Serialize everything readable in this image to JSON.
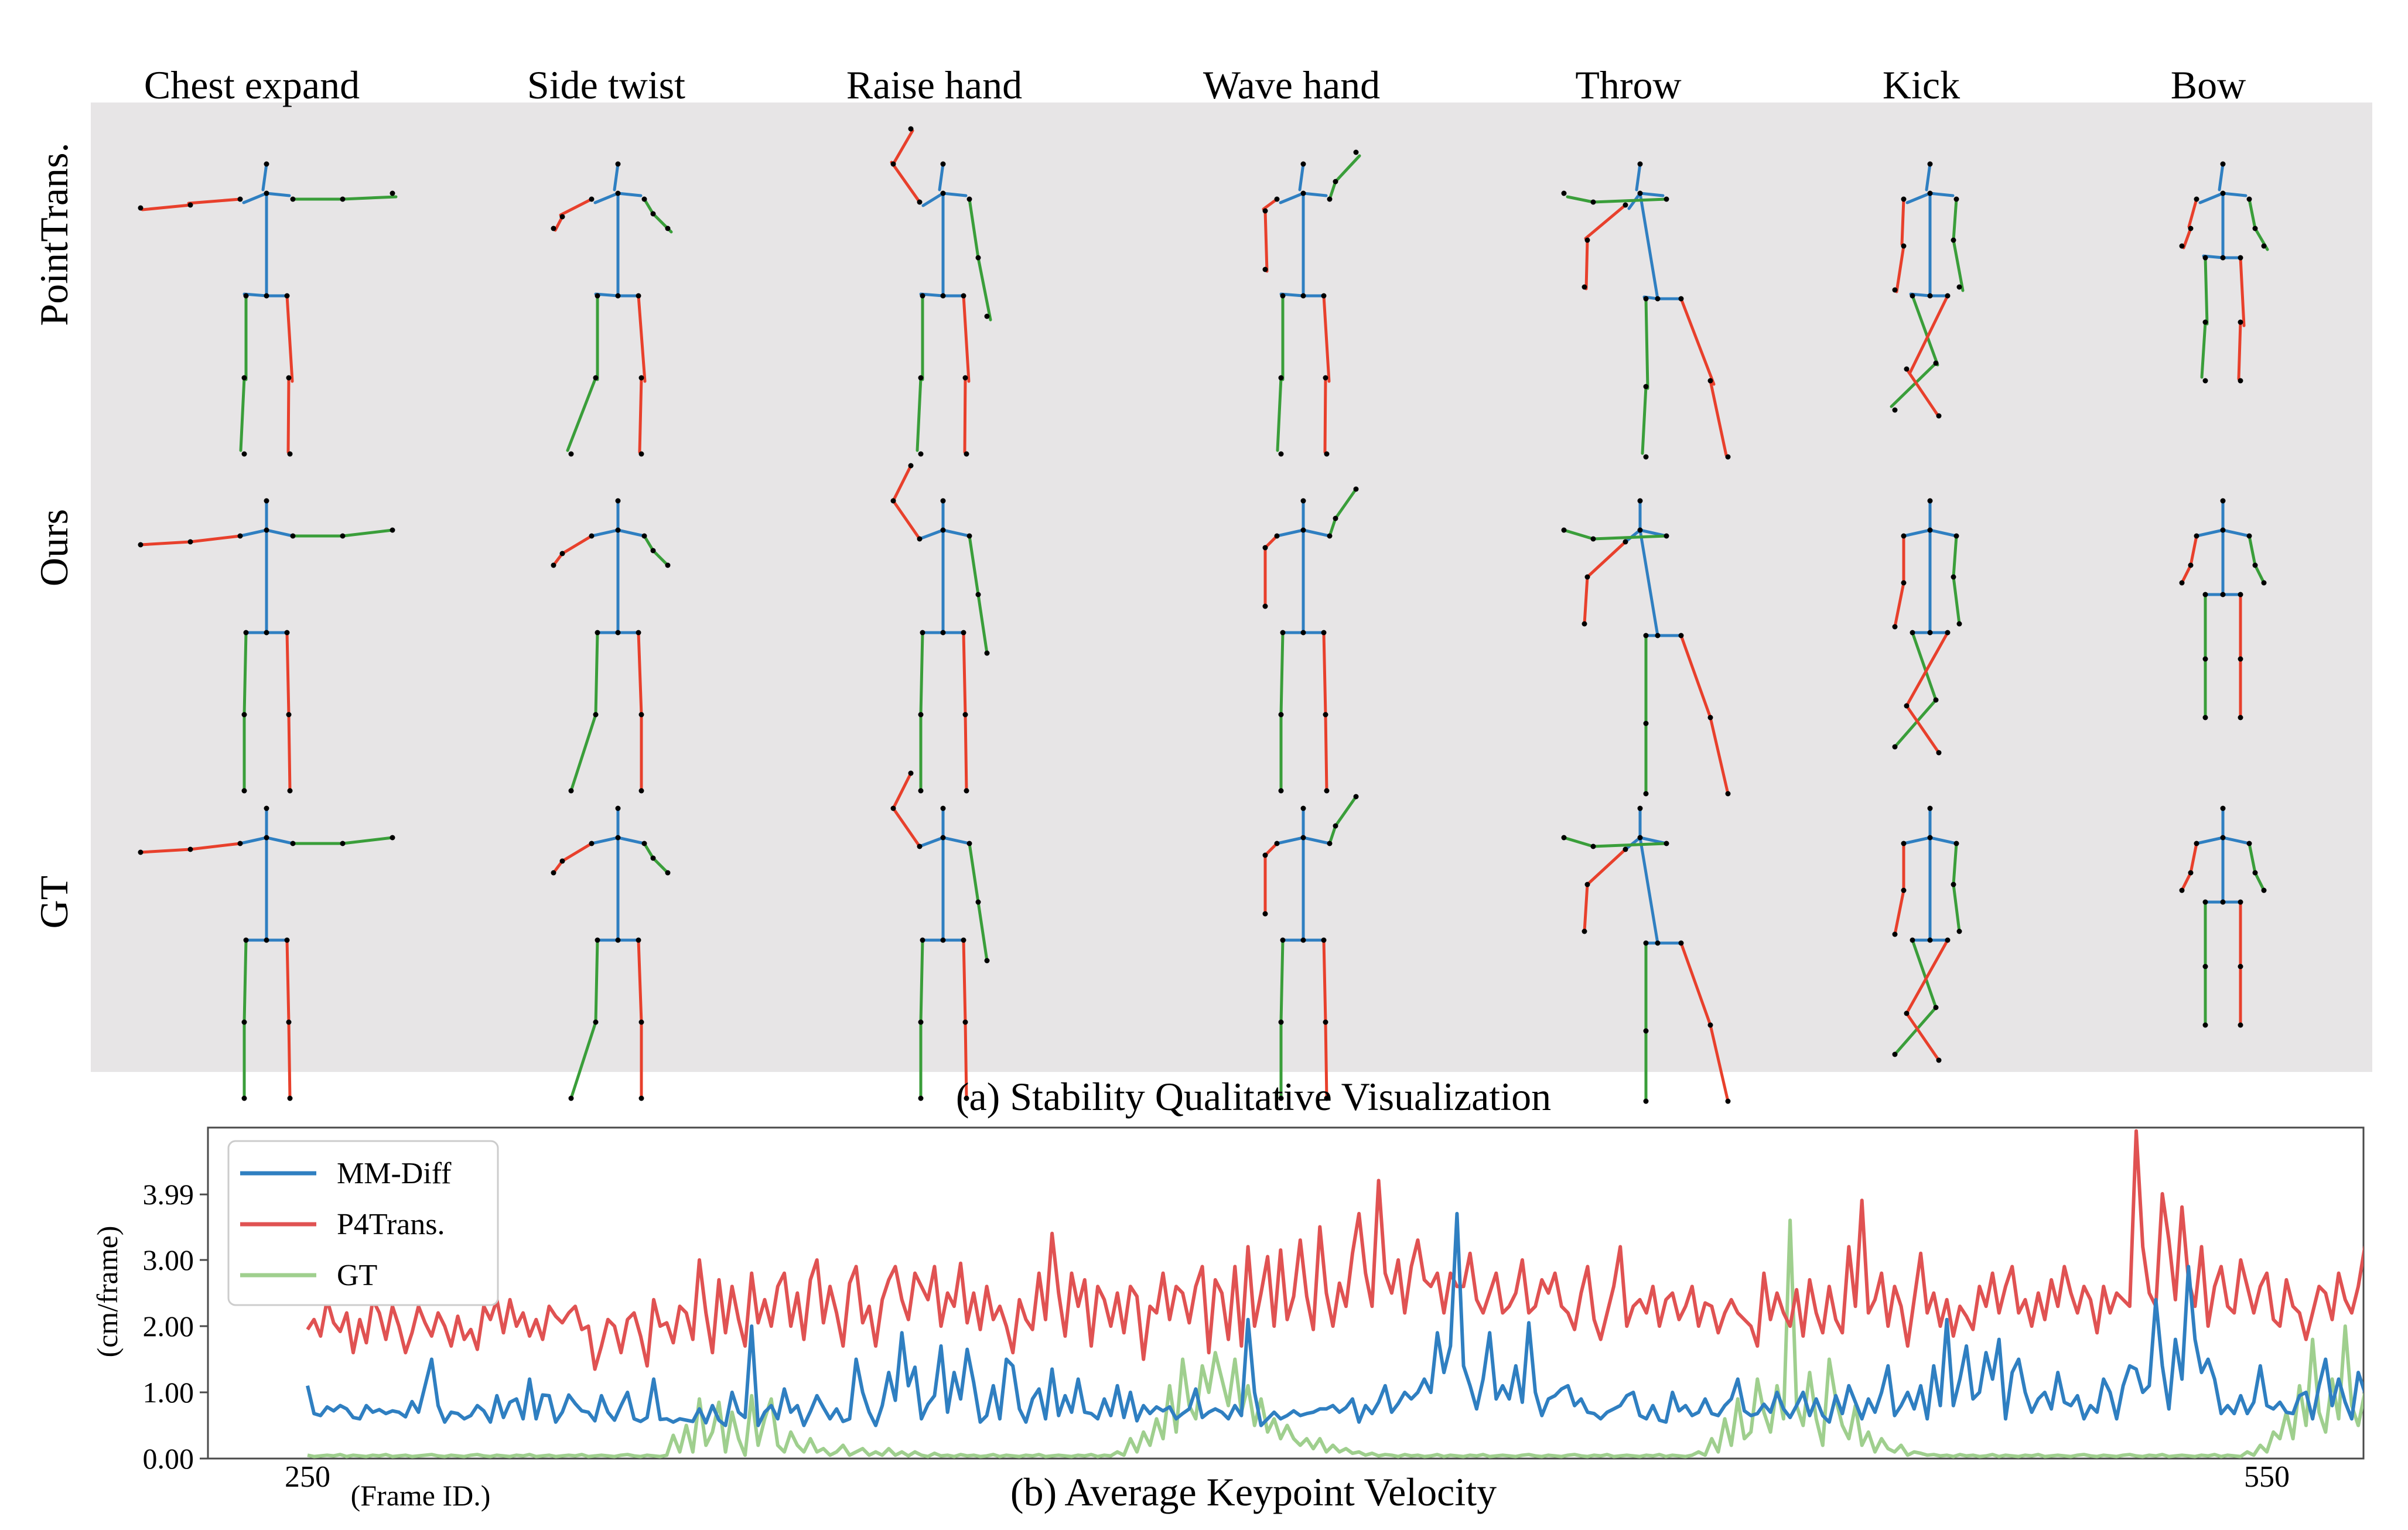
{
  "figure": {
    "actions": [
      "Chest expand",
      "Side twist",
      "Raise hand",
      "Wave hand",
      "Throw",
      "Kick",
      "Bow"
    ],
    "rows": [
      "PointTrans.",
      "Ours",
      "GT"
    ],
    "caption_a": "(a) Stability Qualitative Visualization",
    "caption_b": "(b) Average Keypoint Velocity",
    "colors": {
      "panel_bg": "#e7e5e6",
      "spine": "#2f7fc1",
      "left_limb": "#e8402c",
      "right_limb": "#3a9e3a",
      "joint": "#000000"
    }
  },
  "chart_data": {
    "type": "line",
    "title": "(b) Average Keypoint Velocity",
    "xlabel": "(Frame ID.)",
    "ylabel": "(cm/frame)",
    "xlim": [
      250,
      550
    ],
    "ylim": [
      0,
      5
    ],
    "x_ticks": [
      "250",
      "550"
    ],
    "y_ticks": [
      "0.00",
      "1.00",
      "2.00",
      "3.00",
      "3.99"
    ],
    "legend": "top-left",
    "grid": false,
    "x_start": 250,
    "x_step": 1,
    "series": [
      {
        "name": "MM-Diff",
        "color": "#2f7fc1",
        "values": [
          1.1,
          0.68,
          0.65,
          0.78,
          0.72,
          0.8,
          0.75,
          0.62,
          0.6,
          0.8,
          0.7,
          0.74,
          0.68,
          0.72,
          0.7,
          0.63,
          0.86,
          0.7,
          1.1,
          1.5,
          0.8,
          0.55,
          0.7,
          0.68,
          0.6,
          0.65,
          0.8,
          0.72,
          0.55,
          0.95,
          0.62,
          0.85,
          0.9,
          0.6,
          1.2,
          0.6,
          0.96,
          0.95,
          0.55,
          0.7,
          0.96,
          0.83,
          0.72,
          0.7,
          0.57,
          0.95,
          0.7,
          0.58,
          0.8,
          1.0,
          0.6,
          0.56,
          0.62,
          1.2,
          0.59,
          0.6,
          0.55,
          0.6,
          0.58,
          0.56,
          0.75,
          0.54,
          0.8,
          0.58,
          0.5,
          1.0,
          0.7,
          0.62,
          2.0,
          0.5,
          0.7,
          0.8,
          0.6,
          1.05,
          0.7,
          0.8,
          0.5,
          0.71,
          0.95,
          0.77,
          0.6,
          0.75,
          0.56,
          0.6,
          1.5,
          1.0,
          0.7,
          0.5,
          0.8,
          1.3,
          0.88,
          1.9,
          1.1,
          1.38,
          0.6,
          0.82,
          0.95,
          1.7,
          0.7,
          1.3,
          0.9,
          1.65,
          1.15,
          0.55,
          0.65,
          1.1,
          0.6,
          1.5,
          1.4,
          0.75,
          0.55,
          0.9,
          1.05,
          0.6,
          1.35,
          0.65,
          0.95,
          0.7,
          1.2,
          0.7,
          0.68,
          0.6,
          0.9,
          0.65,
          1.1,
          0.62,
          1.0,
          0.57,
          0.8,
          0.68,
          0.78,
          0.72,
          0.78,
          0.6,
          0.68,
          0.75,
          1.05,
          0.62,
          0.7,
          0.75,
          0.7,
          0.6,
          0.8,
          0.65,
          2.1,
          1.0,
          0.5,
          0.6,
          0.7,
          0.6,
          0.65,
          0.72,
          0.65,
          0.68,
          0.7,
          0.75,
          0.75,
          0.8,
          0.7,
          0.77,
          0.9,
          0.55,
          0.8,
          0.68,
          0.85,
          1.1,
          0.7,
          0.83,
          1.0,
          0.9,
          1.0,
          1.2,
          1.0,
          1.9,
          1.3,
          1.7,
          3.7,
          1.4,
          1.1,
          0.75,
          1.2,
          1.9,
          0.9,
          1.1,
          0.9,
          1.4,
          0.85,
          2.05,
          1.0,
          0.65,
          0.9,
          0.95,
          1.05,
          1.1,
          0.8,
          0.9,
          0.7,
          0.68,
          0.6,
          0.7,
          0.75,
          0.8,
          0.95,
          1.0,
          0.65,
          0.6,
          0.8,
          0.58,
          0.55,
          1.0,
          0.72,
          0.8,
          0.65,
          0.7,
          0.9,
          0.68,
          0.65,
          0.8,
          0.9,
          1.2,
          0.72,
          0.65,
          0.68,
          0.82,
          0.7,
          1.0,
          0.75,
          0.62,
          0.8,
          1.0,
          0.65,
          0.9,
          0.65,
          0.55,
          0.95,
          0.68,
          1.1,
          0.85,
          0.6,
          0.9,
          0.7,
          1.0,
          1.4,
          0.65,
          0.8,
          1.0,
          0.75,
          1.1,
          0.6,
          1.4,
          0.8,
          2.1,
          0.8,
          1.2,
          1.7,
          0.9,
          1.0,
          1.6,
          1.2,
          1.8,
          0.6,
          1.3,
          1.5,
          1.0,
          0.7,
          0.9,
          1.0,
          0.75,
          1.3,
          0.85,
          0.8,
          0.95,
          0.6,
          0.8,
          0.7,
          1.2,
          1.0,
          0.6,
          1.1,
          1.4,
          1.35,
          1.0,
          1.1,
          2.4,
          1.4,
          0.75,
          1.8,
          1.2,
          2.9,
          1.8,
          1.3,
          1.5,
          1.2,
          0.68,
          0.8,
          0.68,
          0.95,
          0.68,
          0.85,
          1.4,
          0.8,
          0.75,
          0.85,
          0.7,
          0.68,
          0.95,
          1.0,
          0.6,
          1.1,
          1.5,
          0.8,
          1.2,
          0.85,
          0.6,
          1.3,
          1.0,
          0.85,
          0.65,
          1.5,
          1.95,
          1.0,
          0.68,
          0.75,
          0.8,
          1.0,
          1.2,
          0.9,
          1.4,
          1.8,
          1.9,
          1.2,
          1.3,
          2.4,
          1.3,
          1.75,
          1.3,
          1.2,
          0.9,
          0.7,
          1.4,
          1.05,
          0.95,
          1.3,
          0.8,
          1.25,
          1.1,
          0.9,
          1.5,
          1.0,
          0.7,
          2.05,
          0.8,
          1.4,
          1.45,
          1.42
        ]
      },
      {
        "name": "P4Trans.",
        "color": "#e05252",
        "values": [
          1.95,
          2.1,
          1.85,
          2.4,
          2.05,
          1.92,
          2.2,
          1.6,
          2.1,
          1.75,
          2.4,
          2.2,
          1.8,
          2.3,
          2.0,
          1.6,
          1.9,
          2.3,
          2.05,
          1.85,
          2.2,
          2.0,
          1.7,
          2.15,
          1.8,
          1.95,
          1.65,
          2.3,
          2.1,
          2.4,
          1.9,
          2.4,
          2.0,
          2.2,
          1.85,
          2.1,
          1.8,
          2.3,
          2.15,
          2.05,
          2.2,
          2.3,
          1.95,
          2.0,
          1.35,
          1.7,
          2.1,
          2.0,
          1.6,
          2.1,
          2.2,
          1.85,
          1.4,
          2.4,
          2.0,
          2.05,
          1.75,
          2.3,
          2.2,
          1.8,
          3.0,
          2.2,
          1.6,
          2.7,
          1.9,
          2.6,
          2.1,
          1.7,
          2.8,
          2.05,
          2.4,
          2.0,
          2.6,
          2.8,
          2.0,
          2.5,
          1.8,
          2.7,
          3.0,
          2.05,
          2.6,
          2.2,
          1.7,
          2.65,
          2.9,
          2.05,
          2.3,
          1.7,
          2.4,
          2.7,
          2.9,
          2.4,
          2.1,
          2.8,
          2.6,
          2.4,
          2.9,
          2.0,
          2.5,
          2.3,
          2.95,
          2.05,
          2.5,
          1.95,
          2.6,
          2.1,
          2.3,
          2.0,
          1.6,
          2.4,
          2.1,
          1.95,
          2.8,
          2.1,
          3.4,
          2.5,
          1.85,
          2.8,
          2.3,
          2.7,
          1.7,
          2.6,
          2.4,
          2.0,
          2.5,
          1.9,
          2.6,
          2.45,
          1.5,
          2.3,
          2.2,
          2.8,
          2.1,
          2.6,
          2.5,
          2.05,
          2.6,
          2.9,
          1.6,
          2.7,
          2.5,
          1.8,
          2.9,
          1.7,
          3.2,
          2.0,
          2.5,
          3.05,
          2.0,
          3.15,
          2.1,
          2.45,
          3.3,
          2.45,
          1.95,
          3.5,
          2.5,
          2.0,
          2.65,
          2.3,
          3.1,
          3.7,
          2.8,
          2.3,
          4.2,
          2.8,
          2.5,
          3.0,
          2.2,
          2.9,
          3.3,
          2.7,
          2.6,
          2.8,
          2.2,
          2.8,
          2.6,
          2.6,
          3.1,
          2.4,
          2.2,
          2.5,
          2.8,
          2.2,
          2.3,
          2.5,
          3.0,
          2.2,
          2.3,
          2.7,
          2.5,
          2.8,
          2.3,
          2.2,
          1.95,
          2.5,
          2.9,
          2.1,
          1.8,
          2.2,
          2.6,
          3.2,
          2.0,
          2.3,
          2.4,
          2.2,
          2.6,
          2.0,
          2.4,
          2.5,
          2.1,
          2.3,
          2.6,
          2.0,
          2.35,
          2.3,
          1.9,
          2.2,
          2.4,
          2.2,
          2.1,
          2.0,
          1.7,
          2.8,
          2.1,
          2.5,
          2.2,
          2.0,
          2.55,
          1.85,
          2.7,
          2.2,
          1.9,
          2.6,
          2.1,
          1.9,
          3.2,
          2.3,
          3.9,
          2.2,
          2.4,
          2.8,
          2.0,
          2.6,
          2.3,
          1.7,
          2.4,
          3.1,
          2.2,
          2.5,
          2.0,
          2.4,
          1.85,
          2.3,
          2.15,
          1.95,
          2.6,
          2.3,
          2.8,
          2.2,
          2.6,
          2.9,
          2.2,
          2.4,
          2.0,
          2.5,
          2.1,
          2.7,
          2.3,
          2.9,
          2.5,
          2.2,
          2.6,
          2.4,
          1.9,
          2.6,
          2.2,
          2.5,
          2.4,
          2.3,
          4.95,
          3.2,
          2.5,
          2.3,
          4.0,
          3.3,
          2.4,
          3.8,
          2.7,
          2.3,
          3.2,
          2.0,
          2.6,
          2.9,
          2.3,
          2.2,
          3.0,
          2.6,
          2.2,
          2.6,
          2.8,
          2.1,
          2.0,
          2.7,
          2.3,
          2.2,
          1.8,
          2.2,
          2.6,
          2.5,
          2.1,
          2.8,
          2.4,
          2.2,
          2.6,
          3.2,
          2.3,
          3.5,
          2.7,
          2.3,
          4.05,
          2.6,
          2.5,
          3.8,
          2.2,
          2.6,
          3.6,
          2.4,
          2.9,
          3.2,
          2.6,
          2.7,
          2.9,
          2.6,
          2.8,
          2.7,
          2.6,
          2.9,
          2.2,
          3.1,
          2.5,
          2.9,
          2.7,
          2.5,
          2.6,
          2.5,
          2.1,
          2.5
        ]
      },
      {
        "name": "GT",
        "color": "#9fcf8e",
        "values": [
          0.05,
          0.03,
          0.04,
          0.05,
          0.04,
          0.06,
          0.03,
          0.05,
          0.04,
          0.03,
          0.05,
          0.04,
          0.06,
          0.03,
          0.04,
          0.05,
          0.03,
          0.04,
          0.05,
          0.06,
          0.04,
          0.03,
          0.05,
          0.04,
          0.03,
          0.05,
          0.06,
          0.04,
          0.03,
          0.05,
          0.04,
          0.03,
          0.05,
          0.04,
          0.06,
          0.03,
          0.04,
          0.05,
          0.03,
          0.04,
          0.05,
          0.04,
          0.06,
          0.03,
          0.04,
          0.05,
          0.04,
          0.03,
          0.05,
          0.06,
          0.04,
          0.03,
          0.05,
          0.04,
          0.03,
          0.05,
          0.35,
          0.1,
          0.5,
          0.1,
          0.9,
          0.2,
          0.4,
          0.85,
          0.1,
          0.7,
          0.3,
          0.05,
          0.95,
          0.2,
          0.6,
          0.9,
          0.2,
          0.1,
          0.4,
          0.2,
          0.1,
          0.3,
          0.1,
          0.15,
          0.05,
          0.1,
          0.2,
          0.05,
          0.1,
          0.15,
          0.05,
          0.1,
          0.05,
          0.15,
          0.05,
          0.1,
          0.04,
          0.1,
          0.05,
          0.03,
          0.08,
          0.04,
          0.05,
          0.03,
          0.06,
          0.04,
          0.05,
          0.03,
          0.04,
          0.06,
          0.03,
          0.05,
          0.04,
          0.03,
          0.05,
          0.04,
          0.06,
          0.03,
          0.04,
          0.05,
          0.04,
          0.03,
          0.05,
          0.04,
          0.06,
          0.03,
          0.05,
          0.04,
          0.1,
          0.05,
          0.3,
          0.1,
          0.4,
          0.2,
          0.6,
          0.3,
          1.1,
          0.4,
          1.5,
          0.8,
          0.6,
          1.4,
          1.0,
          1.6,
          1.2,
          0.8,
          1.5,
          0.7,
          1.1,
          0.5,
          0.9,
          0.4,
          0.6,
          0.3,
          0.5,
          0.3,
          0.2,
          0.3,
          0.15,
          0.3,
          0.1,
          0.2,
          0.1,
          0.15,
          0.08,
          0.1,
          0.05,
          0.08,
          0.04,
          0.06,
          0.05,
          0.03,
          0.06,
          0.04,
          0.05,
          0.03,
          0.04,
          0.06,
          0.03,
          0.05,
          0.04,
          0.03,
          0.05,
          0.04,
          0.06,
          0.03,
          0.04,
          0.05,
          0.04,
          0.03,
          0.05,
          0.06,
          0.04,
          0.03,
          0.05,
          0.04,
          0.03,
          0.05,
          0.06,
          0.04,
          0.03,
          0.05,
          0.04,
          0.06,
          0.03,
          0.04,
          0.05,
          0.04,
          0.03,
          0.05,
          0.04,
          0.06,
          0.03,
          0.05,
          0.04,
          0.03,
          0.05,
          0.1,
          0.05,
          0.3,
          0.1,
          0.6,
          0.2,
          0.9,
          0.3,
          0.4,
          1.2,
          0.7,
          0.4,
          1.1,
          0.6,
          3.6,
          0.8,
          0.5,
          1.3,
          0.6,
          0.2,
          1.5,
          0.9,
          0.5,
          0.3,
          0.8,
          0.2,
          0.4,
          0.1,
          0.3,
          0.15,
          0.1,
          0.2,
          0.05,
          0.1,
          0.08,
          0.05,
          0.06,
          0.04,
          0.05,
          0.03,
          0.06,
          0.04,
          0.05,
          0.03,
          0.04,
          0.06,
          0.03,
          0.05,
          0.04,
          0.03,
          0.05,
          0.04,
          0.06,
          0.03,
          0.04,
          0.05,
          0.04,
          0.03,
          0.05,
          0.06,
          0.04,
          0.03,
          0.05,
          0.04,
          0.03,
          0.05,
          0.06,
          0.04,
          0.03,
          0.05,
          0.04,
          0.06,
          0.03,
          0.04,
          0.05,
          0.04,
          0.03,
          0.05,
          0.04,
          0.06,
          0.03,
          0.05,
          0.04,
          0.03,
          0.1,
          0.05,
          0.2,
          0.1,
          0.4,
          0.3,
          0.7,
          0.3,
          1.1,
          0.5,
          1.8,
          0.7,
          0.4,
          1.2,
          0.6,
          2.0,
          0.8,
          0.5,
          1.0,
          0.4,
          0.7,
          0.3,
          0.5,
          0.2,
          0.3,
          0.25,
          0.15,
          0.1,
          0.2,
          0.1,
          0.05,
          0.1,
          0.05,
          0.08,
          0.04,
          0.06,
          0.05,
          0.03,
          0.05,
          0.04,
          0.03,
          0.05
        ]
      }
    ]
  }
}
